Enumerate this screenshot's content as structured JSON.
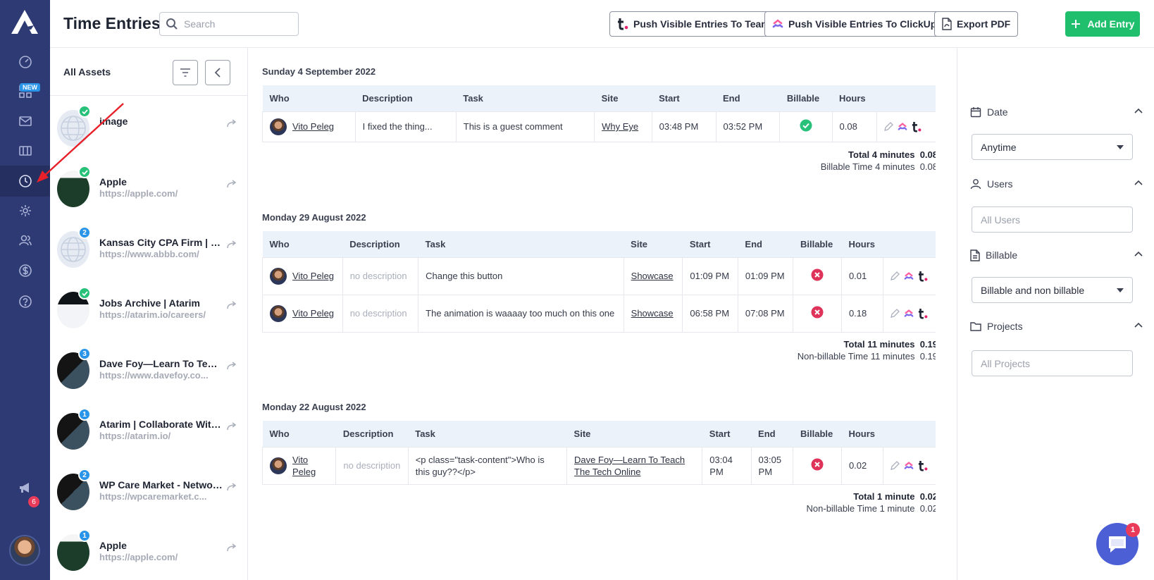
{
  "header": {
    "title": "Time Entries",
    "search_placeholder": "Search",
    "push_teamwork_label": "Push Visible Entries To TeamWork",
    "push_clickup_label": "Push Visible Entries To ClickUp",
    "export_pdf_label": "Export PDF",
    "add_entry_label": "Add Entry"
  },
  "rail": {
    "new_badge": "NEW",
    "notifications_count": "6",
    "icons": [
      "dashboard-icon",
      "apps-icon",
      "inbox-icon",
      "board-icon",
      "clock-icon",
      "settings-icon",
      "users-icon",
      "dollar-icon",
      "help-icon",
      "megaphone-icon"
    ]
  },
  "assets": {
    "title": "All Assets",
    "items": [
      {
        "name": "image",
        "url": "",
        "badge": "check",
        "thumb": "globe"
      },
      {
        "name": "Apple",
        "url": "https://apple.com/",
        "badge": "check",
        "thumb": "apple"
      },
      {
        "name": "Kansas City CPA Firm | W...",
        "url": "https://www.abbb.com/",
        "badge": "2",
        "thumb": "globe"
      },
      {
        "name": "Jobs Archive | Atarim",
        "url": "https://atarim.io/careers/",
        "badge": "check",
        "thumb": "img"
      },
      {
        "name": "Dave Foy—Learn To Teac...",
        "url": "https://www.davefoy.co...",
        "badge": "3",
        "thumb": "dark"
      },
      {
        "name": "Atarim | Collaborate With...",
        "url": "https://atarim.io/",
        "badge": "1",
        "thumb": "dark"
      },
      {
        "name": "WP Care Market - Networ...",
        "url": "https://wpcaremarket.c...",
        "badge": "2",
        "thumb": "dark"
      },
      {
        "name": "Apple",
        "url": "https://apple.com/",
        "badge": "1",
        "thumb": "apple"
      }
    ]
  },
  "days": [
    {
      "date": "Sunday 4 September 2022",
      "columns": [
        "Who",
        "Description",
        "Task",
        "Site",
        "Start",
        "End",
        "Billable",
        "Hours",
        ""
      ],
      "rows": [
        {
          "who": "Vito Peleg",
          "description": "I fixed the thing...",
          "task": "This is a guest comment",
          "site": "Why Eye",
          "start": "03:48 PM",
          "end": "03:52 PM",
          "billable": true,
          "hours": "0.08"
        }
      ],
      "total_label": "Total",
      "total_time": "4 minutes",
      "total_hours": "0.08",
      "sub_label": "Billable Time",
      "sub_time": "4 minutes",
      "sub_hours": "0.08"
    },
    {
      "date": "Monday 29 August 2022",
      "columns": [
        "Who",
        "Description",
        "Task",
        "Site",
        "Start",
        "End",
        "Billable",
        "Hours",
        ""
      ],
      "rows": [
        {
          "who": "Vito Peleg",
          "description": "no description",
          "task": "Change this button",
          "site": "Showcase",
          "start": "01:09 PM",
          "end": "01:09 PM",
          "billable": false,
          "hours": "0.01"
        },
        {
          "who": "Vito Peleg",
          "description": "no description",
          "task": "The animation is waaaay too much on this one",
          "site": "Showcase",
          "start": "06:58 PM",
          "end": "07:08 PM",
          "billable": false,
          "hours": "0.18"
        }
      ],
      "total_label": "Total",
      "total_time": "11 minutes",
      "total_hours": "0.19",
      "sub_label": "Non-billable Time",
      "sub_time": "11 minutes",
      "sub_hours": "0.19"
    },
    {
      "date": "Monday 22 August 2022",
      "columns": [
        "Who",
        "Description",
        "Task",
        "Site",
        "Start",
        "End",
        "Billable",
        "Hours",
        ""
      ],
      "rows": [
        {
          "who": "Vito Peleg",
          "description": "no description",
          "task": "<p class=\"task-content\">Who is this guy??</p>",
          "site": "Dave Foy—Learn To Teach The Tech Online",
          "start": "03:04 PM",
          "end": "03:05 PM",
          "billable": false,
          "hours": "0.02"
        }
      ],
      "total_label": "Total",
      "total_time": "1 minute",
      "total_hours": "0.02",
      "sub_label": "Non-billable Time",
      "sub_time": "1 minute",
      "sub_hours": "0.02"
    }
  ],
  "filters": {
    "date_label": "Date",
    "date_value": "Anytime",
    "users_label": "Users",
    "users_placeholder": "All Users",
    "billable_label": "Billable",
    "billable_value": "Billable and non billable",
    "projects_label": "Projects",
    "projects_placeholder": "All Projects"
  },
  "chat": {
    "badge": "1"
  },
  "colors": {
    "rail": "#2e3a74",
    "accent_green": "#1fbf6e",
    "billable_yes": "#27c17a",
    "billable_no": "#e0335a",
    "badge_blue": "#2a95e8"
  }
}
